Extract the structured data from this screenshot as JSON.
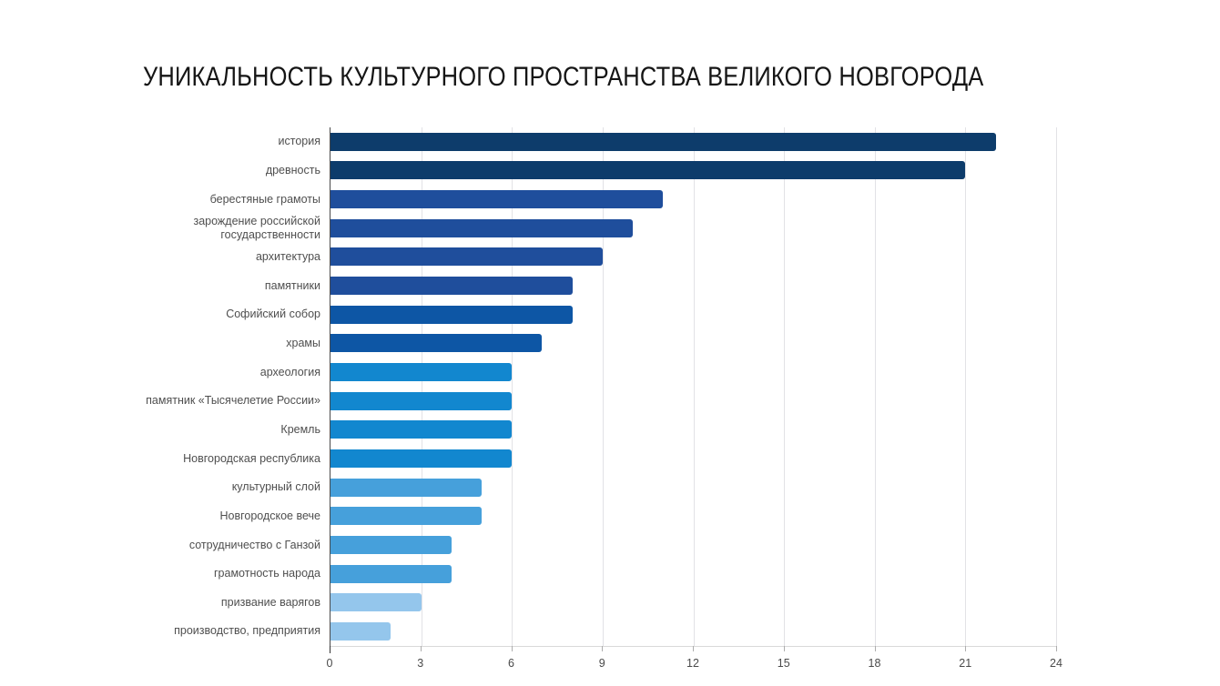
{
  "logo": {
    "background_color": "#1532aa",
    "icon": "open-book-icon",
    "icon_color": "#ffffff"
  },
  "header": {
    "title": "УНИКАЛЬНОСТЬ КУЛЬТУРНОГО ПРОСТРАНСТВА ВЕЛИКОГО НОВГОРОДА"
  },
  "chart_data": {
    "type": "bar",
    "orientation": "horizontal",
    "title": "",
    "xlabel": "",
    "ylabel": "",
    "xlim": [
      0,
      24
    ],
    "x_ticks": [
      0,
      3,
      6,
      9,
      12,
      15,
      18,
      21,
      24
    ],
    "grid": true,
    "legend": "none",
    "categories": [
      "история",
      "древность",
      "берестяные грамоты",
      "зарождение российской государственности",
      "архитектура",
      "памятники",
      "Софийский собор",
      "храмы",
      "археология",
      "памятник «Тысячелетие России»",
      "Кремль",
      "Новгородская республика",
      "культурный слой",
      "Новгородское вече",
      "сотрудничество с Ганзой",
      "грамотность народа",
      "призвание варягов",
      "производство, предприятия"
    ],
    "values": [
      22,
      21,
      11,
      10,
      9,
      8,
      8,
      7,
      6,
      6,
      6,
      6,
      5,
      5,
      4,
      4,
      3,
      2
    ],
    "bar_colors": [
      "#0d3c6b",
      "#0d3c6b",
      "#1f4e9c",
      "#1f4e9c",
      "#1f4e9c",
      "#1f4e9c",
      "#0d56a5",
      "#0d56a5",
      "#1287cf",
      "#1287cf",
      "#1287cf",
      "#1287cf",
      "#46a0db",
      "#46a0db",
      "#46a0db",
      "#46a0db",
      "#94c6ec",
      "#94c6ec"
    ],
    "colors_legend": {
      "dark_navy": "#0d3c6b",
      "royal_blue": "#1f4e9c",
      "medium_blue": "#0d56a5",
      "azure": "#1287cf",
      "light_blue": "#46a0db",
      "pale_blue": "#94c6ec"
    }
  }
}
